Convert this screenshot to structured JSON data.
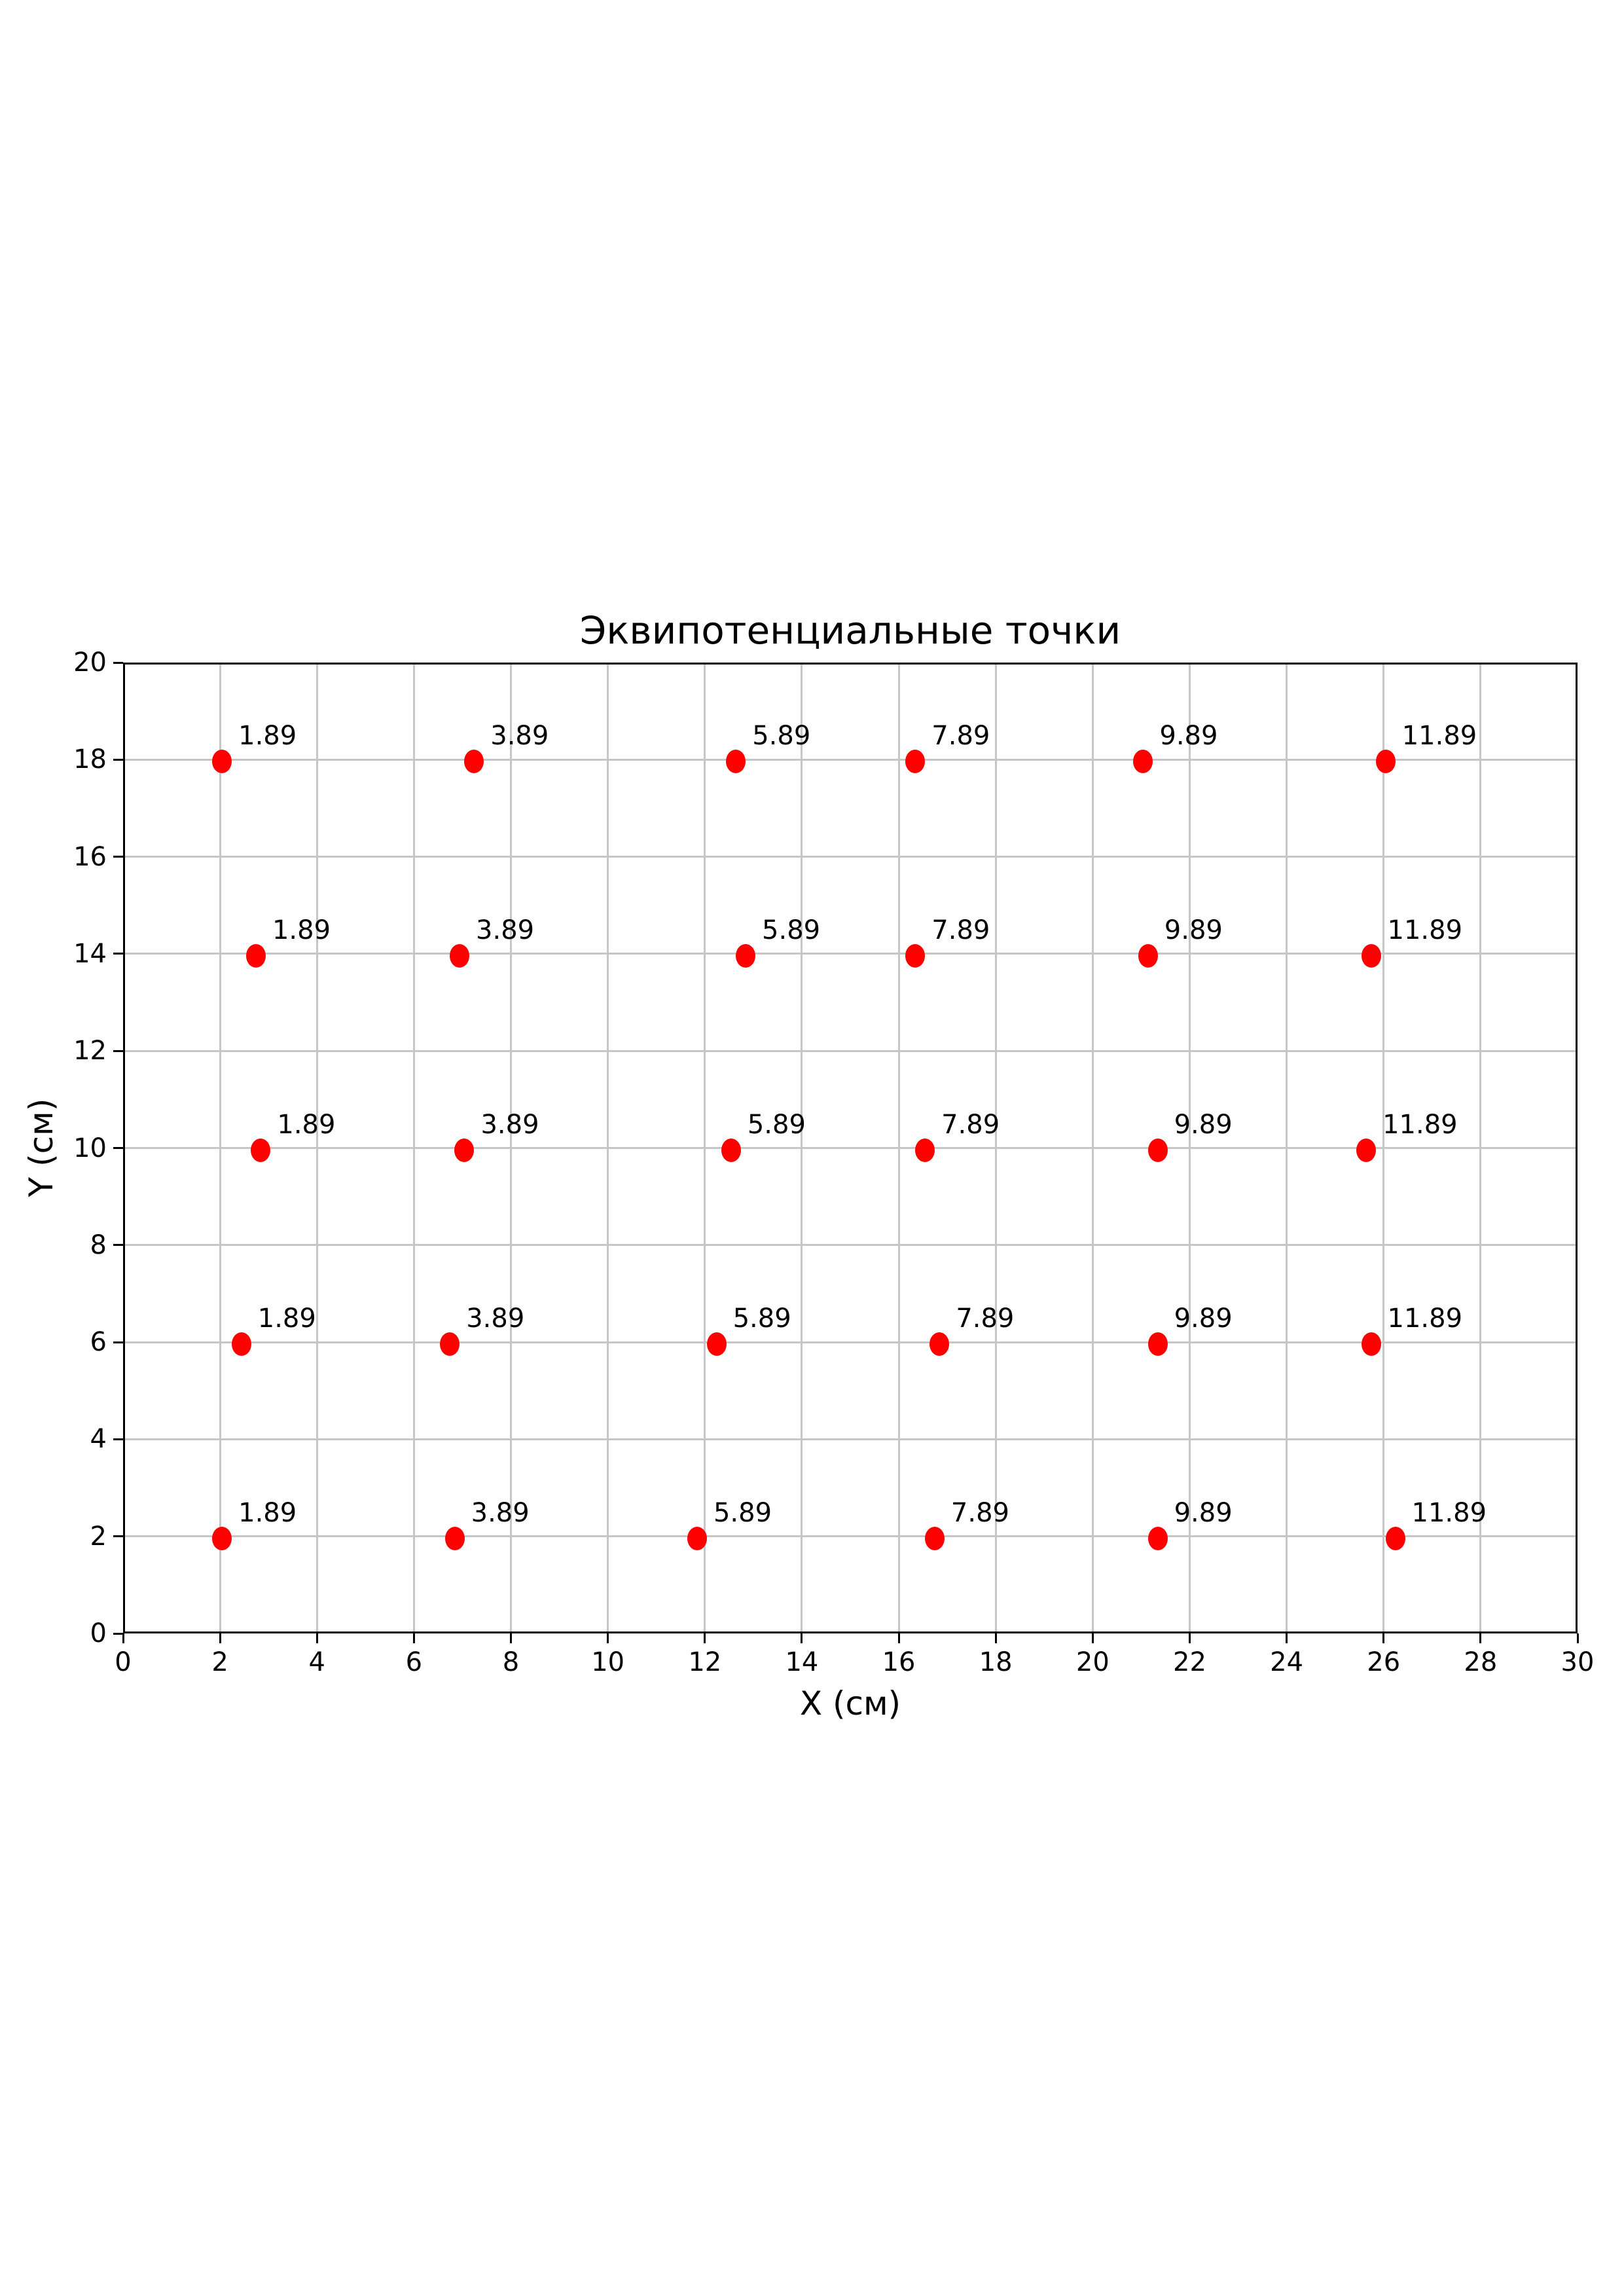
{
  "figure": {
    "background_color": "#ffffff"
  },
  "chart_data": {
    "type": "scatter",
    "title": "Эквипотенциальные точки",
    "xlabel": "X (см)",
    "ylabel": "Y (см)",
    "xlim": [
      0,
      30
    ],
    "ylim": [
      0,
      20
    ],
    "xticks": [
      0,
      2,
      4,
      6,
      8,
      10,
      12,
      14,
      16,
      18,
      20,
      22,
      24,
      26,
      28,
      30
    ],
    "yticks": [
      0,
      2,
      4,
      6,
      8,
      10,
      12,
      14,
      16,
      18,
      20
    ],
    "grid": true,
    "grid_color": "#c6c6c6",
    "axis_color": "#000000",
    "marker_color": "#ff0000",
    "annotation_color": "#000000",
    "legend": "none",
    "series": [
      {
        "name": "equipotential_points",
        "points": [
          {
            "x": 2.0,
            "y": 18,
            "label": "1.89"
          },
          {
            "x": 7.2,
            "y": 18,
            "label": "3.89"
          },
          {
            "x": 12.6,
            "y": 18,
            "label": "5.89"
          },
          {
            "x": 16.3,
            "y": 18,
            "label": "7.89"
          },
          {
            "x": 21.0,
            "y": 18,
            "label": "9.89"
          },
          {
            "x": 26.0,
            "y": 18,
            "label": "11.89"
          },
          {
            "x": 2.7,
            "y": 14,
            "label": "1.89"
          },
          {
            "x": 6.9,
            "y": 14,
            "label": "3.89"
          },
          {
            "x": 12.8,
            "y": 14,
            "label": "5.89"
          },
          {
            "x": 16.3,
            "y": 14,
            "label": "7.89"
          },
          {
            "x": 21.1,
            "y": 14,
            "label": "9.89"
          },
          {
            "x": 25.7,
            "y": 14,
            "label": "11.89"
          },
          {
            "x": 2.8,
            "y": 10,
            "label": "1.89"
          },
          {
            "x": 7.0,
            "y": 10,
            "label": "3.89"
          },
          {
            "x": 12.5,
            "y": 10,
            "label": "5.89"
          },
          {
            "x": 16.5,
            "y": 10,
            "label": "7.89"
          },
          {
            "x": 21.3,
            "y": 10,
            "label": "9.89"
          },
          {
            "x": 25.6,
            "y": 10,
            "label": "11.89"
          },
          {
            "x": 2.4,
            "y": 6,
            "label": "1.89"
          },
          {
            "x": 6.7,
            "y": 6,
            "label": "3.89"
          },
          {
            "x": 12.2,
            "y": 6,
            "label": "5.89"
          },
          {
            "x": 16.8,
            "y": 6,
            "label": "7.89"
          },
          {
            "x": 21.3,
            "y": 6,
            "label": "9.89"
          },
          {
            "x": 25.7,
            "y": 6,
            "label": "11.89"
          },
          {
            "x": 2.0,
            "y": 2,
            "label": "1.89"
          },
          {
            "x": 6.8,
            "y": 2,
            "label": "3.89"
          },
          {
            "x": 11.8,
            "y": 2,
            "label": "5.89"
          },
          {
            "x": 16.7,
            "y": 2,
            "label": "7.89"
          },
          {
            "x": 21.3,
            "y": 2,
            "label": "9.89"
          },
          {
            "x": 26.2,
            "y": 2,
            "label": "11.89"
          }
        ]
      }
    ]
  }
}
